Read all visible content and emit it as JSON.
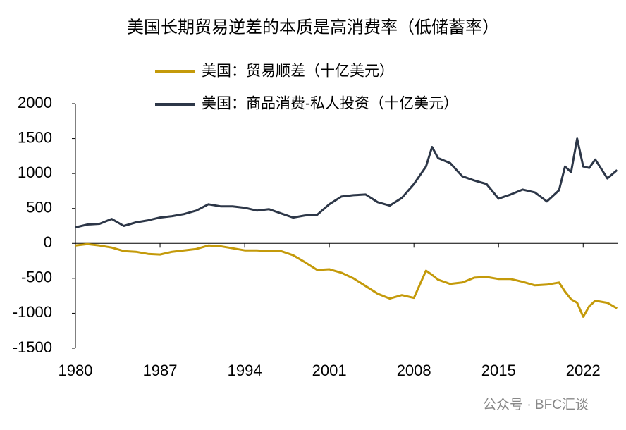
{
  "chart_data": {
    "type": "line",
    "title": "美国长期贸易逆差的本质是高消费率（低储蓄率）",
    "x": [
      1980,
      1981,
      1982,
      1983,
      1984,
      1985,
      1986,
      1987,
      1988,
      1989,
      1990,
      1991,
      1992,
      1993,
      1994,
      1995,
      1996,
      1997,
      1998,
      1999,
      2000,
      2001,
      2002,
      2003,
      2004,
      2005,
      2006,
      2007,
      2008,
      2009,
      2009.5,
      2010,
      2011,
      2012,
      2013,
      2014,
      2015,
      2016,
      2017,
      2018,
      2019,
      2020,
      2020.5,
      2021,
      2021.5,
      2022,
      2022.5,
      2023,
      2024,
      2024.8
    ],
    "series": [
      {
        "name": "美国：贸易顺差（十亿美元）",
        "color": "#c49a0a",
        "values": [
          -30,
          -10,
          -30,
          -60,
          -110,
          -120,
          -150,
          -160,
          -120,
          -100,
          -80,
          -30,
          -40,
          -70,
          -100,
          -100,
          -110,
          -110,
          -170,
          -270,
          -380,
          -370,
          -420,
          -500,
          -610,
          -720,
          -790,
          -740,
          -780,
          -390,
          -450,
          -520,
          -580,
          -560,
          -490,
          -480,
          -510,
          -510,
          -550,
          -600,
          -590,
          -560,
          -690,
          -800,
          -850,
          -1050,
          -900,
          -820,
          -850,
          -930
        ]
      },
      {
        "name": "美国：商品消费-私人投资（十亿美元）",
        "color": "#2d3748",
        "values": [
          230,
          270,
          280,
          350,
          250,
          300,
          330,
          370,
          390,
          420,
          470,
          560,
          530,
          530,
          510,
          470,
          490,
          430,
          370,
          400,
          410,
          560,
          670,
          690,
          700,
          590,
          540,
          650,
          850,
          1100,
          1380,
          1220,
          1150,
          960,
          900,
          850,
          640,
          700,
          770,
          730,
          600,
          760,
          1100,
          1020,
          1500,
          1100,
          1080,
          1200,
          930,
          1050
        ]
      }
    ],
    "xlim": [
      1980,
      2024.9
    ],
    "xticks": [
      1980,
      1987,
      1994,
      2001,
      2008,
      2015,
      2022
    ],
    "ylim": [
      -1500,
      2000
    ],
    "yticks": [
      -1500,
      -1000,
      -500,
      0,
      500,
      1000,
      1500,
      2000
    ],
    "grid": false,
    "watermark": "公众号 · BFC汇谈"
  }
}
